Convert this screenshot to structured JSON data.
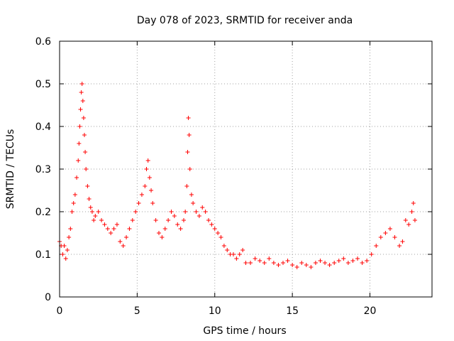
{
  "chart_data": {
    "type": "scatter",
    "title": "Day 078 of 2023, SRMTID for receiver anda",
    "xlabel": "GPS time / hours",
    "ylabel": "SRMTID / TECUs",
    "xlim": [
      0,
      24
    ],
    "ylim": [
      0,
      0.6
    ],
    "xticks": [
      0,
      5,
      10,
      15,
      20
    ],
    "xtick_labels": [
      "0",
      "5",
      "10",
      "15",
      "20"
    ],
    "yticks": [
      0,
      0.1,
      0.2,
      0.3,
      0.4,
      0.5,
      0.6
    ],
    "ytick_labels": [
      "0",
      "0.1",
      "0.2",
      "0.3",
      "0.4",
      "0.5",
      "0.6"
    ],
    "grid": true,
    "marker": "+",
    "series": [
      {
        "name": "SRMTID",
        "color": "#ff0000",
        "x": [
          0.0,
          0.1,
          0.2,
          0.3,
          0.4,
          0.5,
          0.6,
          0.7,
          0.8,
          0.9,
          1.0,
          1.1,
          1.2,
          1.25,
          1.3,
          1.35,
          1.4,
          1.45,
          1.5,
          1.55,
          1.6,
          1.65,
          1.7,
          1.8,
          1.9,
          2.0,
          2.1,
          2.2,
          2.3,
          2.5,
          2.7,
          2.9,
          3.1,
          3.3,
          3.5,
          3.7,
          3.9,
          4.1,
          4.3,
          4.5,
          4.7,
          4.9,
          5.1,
          5.3,
          5.5,
          5.6,
          5.7,
          5.8,
          5.9,
          6.0,
          6.2,
          6.4,
          6.6,
          6.8,
          7.0,
          7.2,
          7.4,
          7.6,
          7.8,
          8.0,
          8.1,
          8.2,
          8.25,
          8.3,
          8.35,
          8.4,
          8.5,
          8.6,
          8.8,
          9.0,
          9.2,
          9.4,
          9.6,
          9.8,
          10.0,
          10.2,
          10.4,
          10.6,
          10.8,
          11.0,
          11.2,
          11.4,
          11.6,
          11.8,
          12.0,
          12.3,
          12.6,
          12.9,
          13.2,
          13.5,
          13.8,
          14.1,
          14.4,
          14.7,
          15.0,
          15.3,
          15.6,
          15.9,
          16.2,
          16.5,
          16.8,
          17.1,
          17.4,
          17.7,
          18.0,
          18.3,
          18.6,
          18.9,
          19.2,
          19.5,
          19.8,
          20.1,
          20.4,
          20.7,
          21.0,
          21.3,
          21.6,
          21.9,
          22.1,
          22.3,
          22.5,
          22.7,
          22.8,
          22.9
        ],
        "y": [
          0.13,
          0.12,
          0.1,
          0.12,
          0.09,
          0.11,
          0.14,
          0.16,
          0.2,
          0.22,
          0.24,
          0.28,
          0.32,
          0.36,
          0.4,
          0.44,
          0.48,
          0.5,
          0.46,
          0.42,
          0.38,
          0.34,
          0.3,
          0.26,
          0.23,
          0.21,
          0.2,
          0.18,
          0.19,
          0.2,
          0.18,
          0.17,
          0.16,
          0.15,
          0.16,
          0.17,
          0.13,
          0.12,
          0.14,
          0.16,
          0.18,
          0.2,
          0.22,
          0.24,
          0.26,
          0.3,
          0.32,
          0.28,
          0.25,
          0.22,
          0.18,
          0.15,
          0.14,
          0.16,
          0.18,
          0.2,
          0.19,
          0.17,
          0.16,
          0.18,
          0.2,
          0.26,
          0.34,
          0.42,
          0.38,
          0.3,
          0.24,
          0.22,
          0.2,
          0.19,
          0.21,
          0.2,
          0.18,
          0.17,
          0.16,
          0.15,
          0.14,
          0.12,
          0.11,
          0.1,
          0.1,
          0.09,
          0.1,
          0.11,
          0.08,
          0.08,
          0.09,
          0.085,
          0.08,
          0.09,
          0.08,
          0.075,
          0.08,
          0.085,
          0.075,
          0.07,
          0.08,
          0.075,
          0.07,
          0.08,
          0.085,
          0.08,
          0.075,
          0.08,
          0.085,
          0.09,
          0.08,
          0.085,
          0.09,
          0.08,
          0.085,
          0.1,
          0.12,
          0.14,
          0.15,
          0.16,
          0.14,
          0.12,
          0.13,
          0.18,
          0.17,
          0.2,
          0.22,
          0.18
        ]
      }
    ]
  }
}
